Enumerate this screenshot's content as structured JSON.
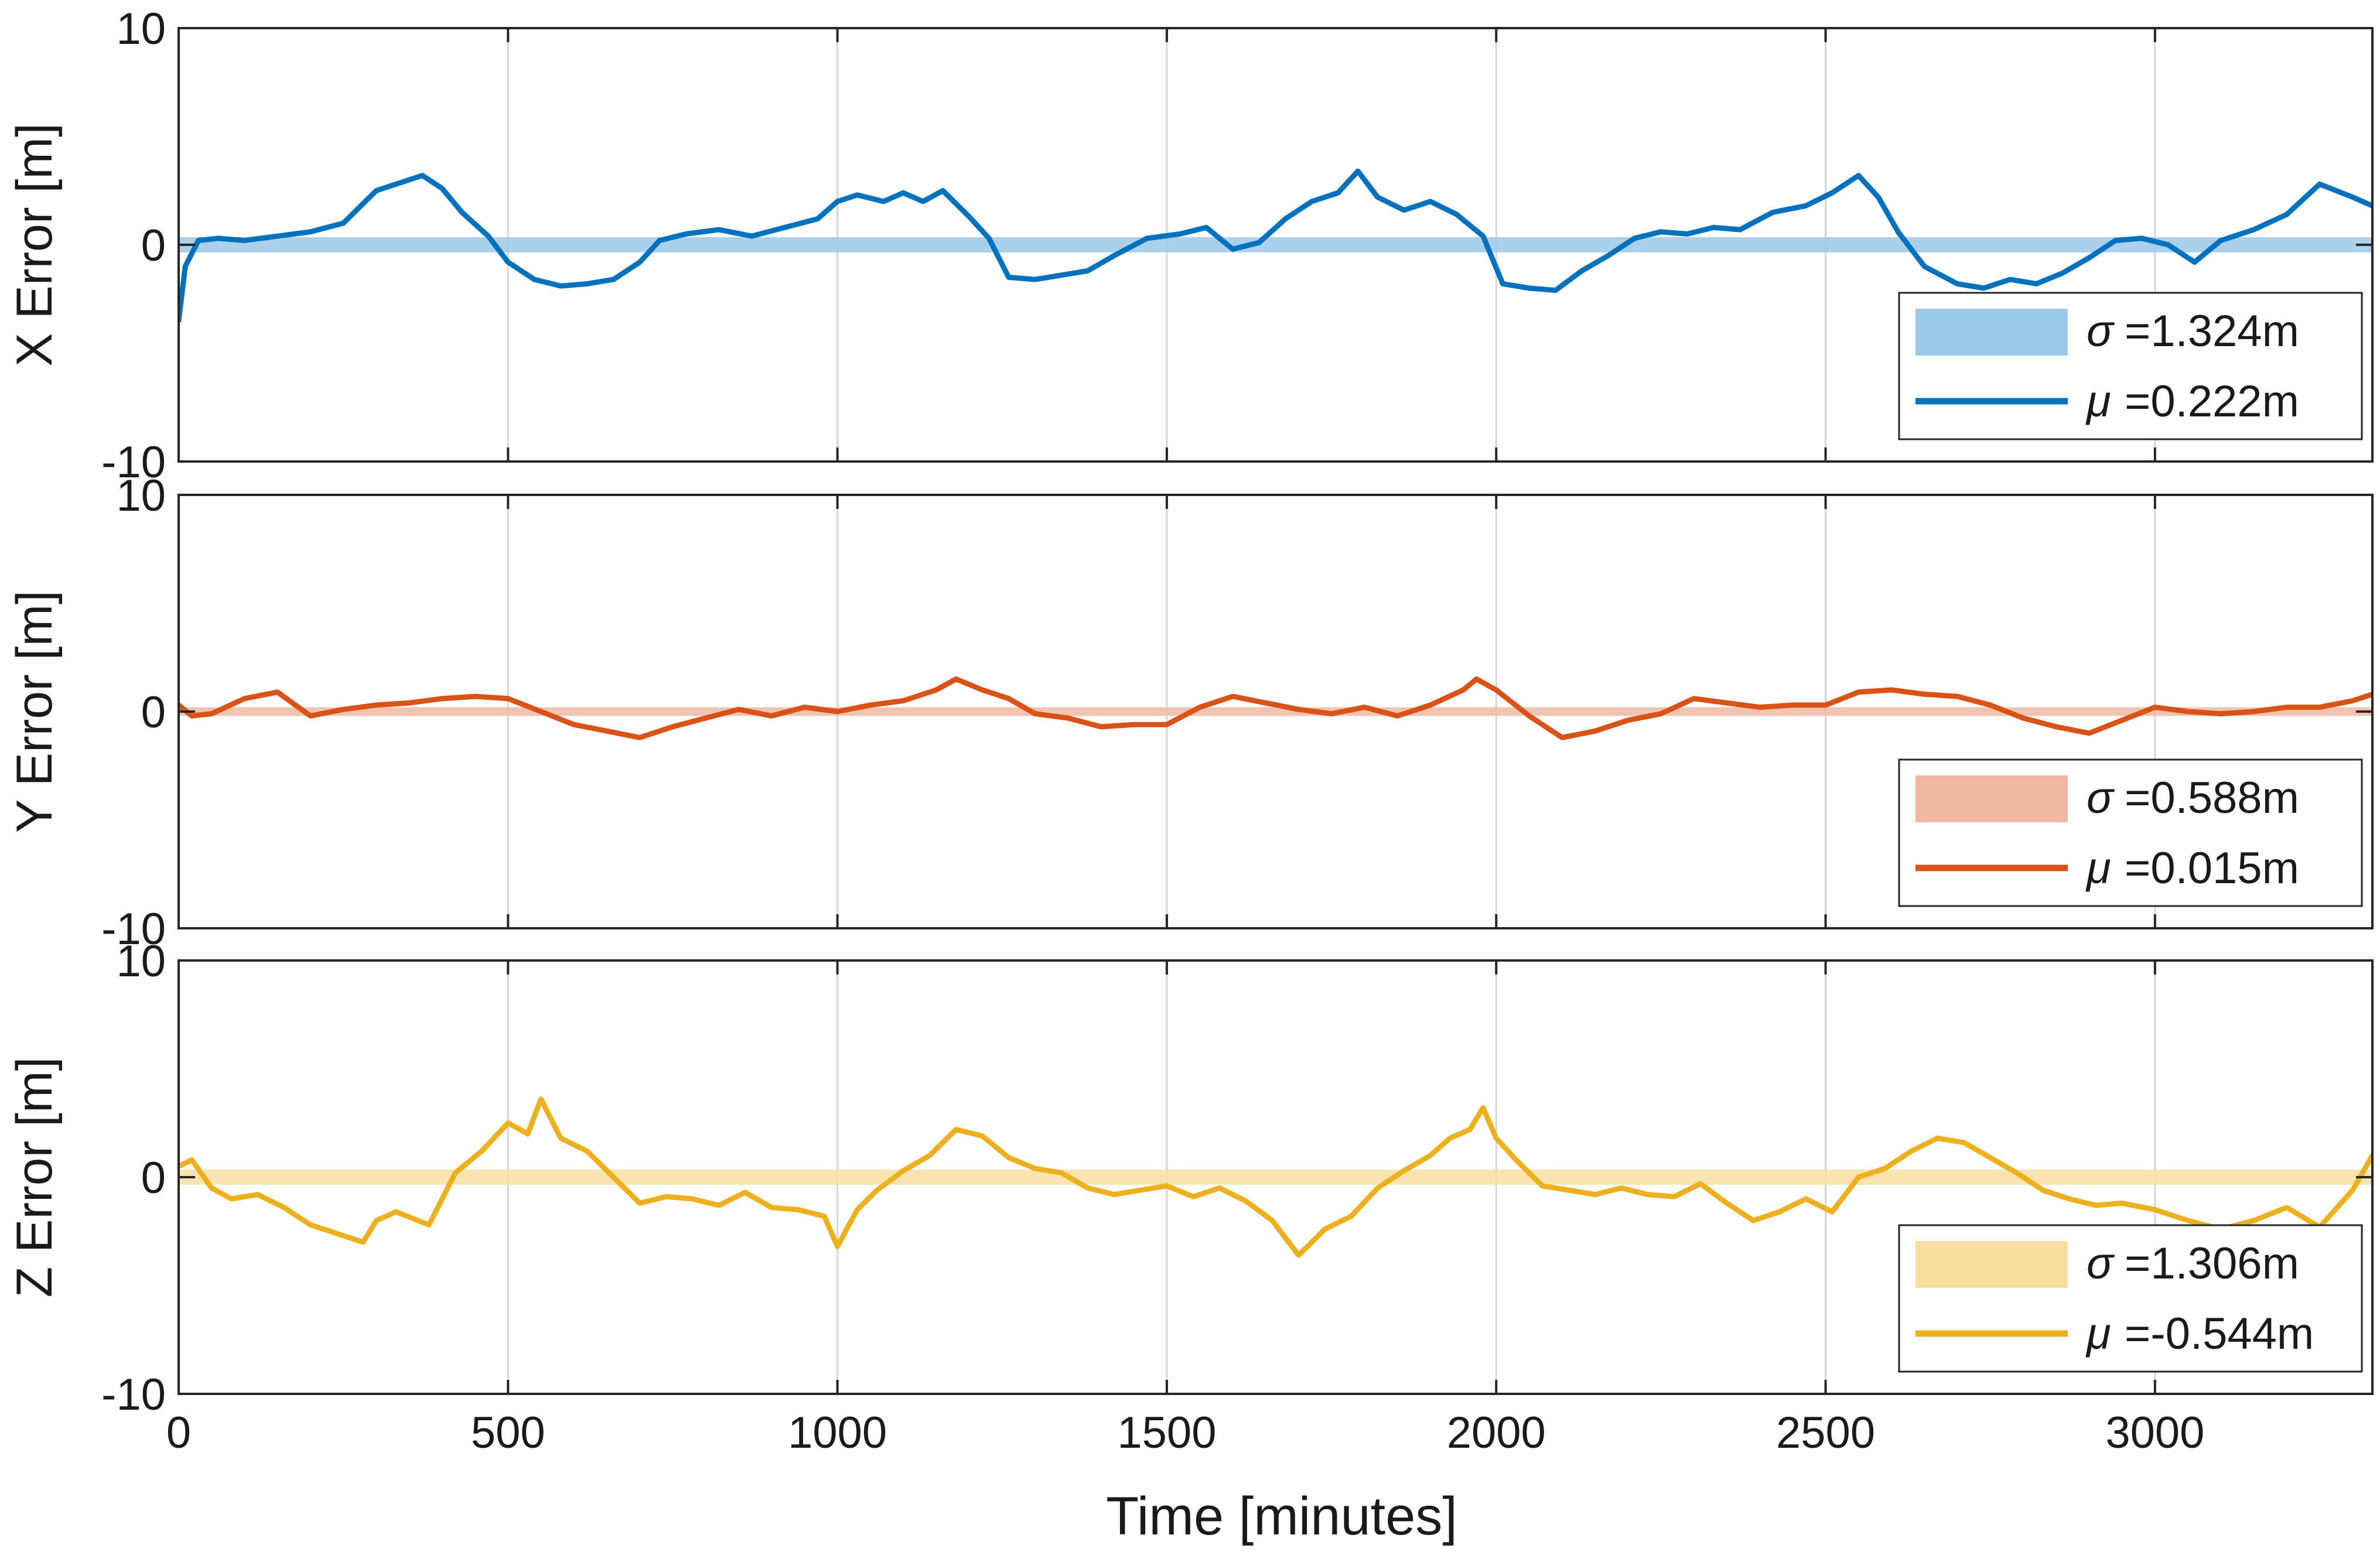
{
  "chart_data": {
    "type": "line",
    "xlabel": "Time [minutes]",
    "xlim": [
      0,
      3330
    ],
    "xticks": [
      0,
      500,
      1000,
      1500,
      2000,
      2500,
      3000
    ],
    "xtick_labels": [
      "0",
      "500",
      "1000",
      "1500",
      "2000",
      "2500",
      "3000"
    ],
    "ylim": [
      -10,
      10
    ],
    "yticks": [
      -10,
      0,
      10
    ],
    "ytick_labels": [
      "-10",
      "0",
      "10"
    ],
    "grid": "vertical",
    "legend_location": "bottom-right",
    "panels": [
      {
        "name": "x",
        "ylabel": "X Error [m]",
        "line_color": "#0072bd",
        "band_color": "#9cc8e8",
        "band_halfwidth": 0.35,
        "legend": [
          {
            "symbol": "σ",
            "text": "=1.324m",
            "kind": "band"
          },
          {
            "symbol": "μ",
            "text": "=0.222m",
            "kind": "line"
          }
        ],
        "series": {
          "x": [
            0,
            10,
            30,
            60,
            100,
            150,
            200,
            250,
            300,
            350,
            370,
            400,
            430,
            470,
            500,
            540,
            580,
            620,
            660,
            700,
            730,
            770,
            820,
            870,
            920,
            970,
            1000,
            1030,
            1070,
            1100,
            1130,
            1160,
            1200,
            1230,
            1260,
            1300,
            1340,
            1380,
            1420,
            1470,
            1520,
            1560,
            1600,
            1640,
            1680,
            1720,
            1760,
            1790,
            1820,
            1860,
            1900,
            1940,
            1980,
            2010,
            2050,
            2090,
            2130,
            2170,
            2210,
            2250,
            2290,
            2330,
            2370,
            2420,
            2470,
            2510,
            2550,
            2580,
            2610,
            2650,
            2700,
            2740,
            2780,
            2820,
            2860,
            2900,
            2940,
            2980,
            3020,
            3060,
            3100,
            3150,
            3200,
            3250,
            3300,
            3330
          ],
          "y": [
            -3.5,
            -1.0,
            0.2,
            0.3,
            0.2,
            0.4,
            0.6,
            1.0,
            2.5,
            3.0,
            3.2,
            2.6,
            1.5,
            0.4,
            -0.8,
            -1.6,
            -1.9,
            -1.8,
            -1.6,
            -0.8,
            0.2,
            0.5,
            0.7,
            0.4,
            0.8,
            1.2,
            2.0,
            2.3,
            2.0,
            2.4,
            2.0,
            2.5,
            1.3,
            0.3,
            -1.5,
            -1.6,
            -1.4,
            -1.2,
            -0.5,
            0.3,
            0.5,
            0.8,
            -0.2,
            0.1,
            1.2,
            2.0,
            2.4,
            3.4,
            2.2,
            1.6,
            2.0,
            1.4,
            0.4,
            -1.8,
            -2.0,
            -2.1,
            -1.2,
            -0.5,
            0.3,
            0.6,
            0.5,
            0.8,
            0.7,
            1.5,
            1.8,
            2.4,
            3.2,
            2.2,
            0.6,
            -1.0,
            -1.8,
            -2.0,
            -1.6,
            -1.8,
            -1.3,
            -0.6,
            0.2,
            0.3,
            0.0,
            -0.8,
            0.2,
            0.7,
            1.4,
            2.8,
            2.2,
            1.8
          ]
        }
      },
      {
        "name": "y",
        "ylabel": "Y Error [m]",
        "line_color": "#d95319",
        "band_color": "#f0b8a2",
        "band_halfwidth": 0.2,
        "legend": [
          {
            "symbol": "σ",
            "text": "=0.588m",
            "kind": "band"
          },
          {
            "symbol": "μ",
            "text": "=0.015m",
            "kind": "line"
          }
        ],
        "series": {
          "x": [
            0,
            20,
            50,
            100,
            150,
            200,
            250,
            300,
            350,
            400,
            450,
            500,
            550,
            600,
            650,
            700,
            750,
            800,
            850,
            900,
            950,
            1000,
            1050,
            1100,
            1150,
            1180,
            1220,
            1260,
            1300,
            1350,
            1400,
            1450,
            1500,
            1550,
            1600,
            1650,
            1700,
            1750,
            1800,
            1850,
            1900,
            1950,
            1970,
            2000,
            2050,
            2100,
            2150,
            2200,
            2250,
            2300,
            2350,
            2400,
            2450,
            2500,
            2550,
            2600,
            2650,
            2700,
            2750,
            2800,
            2850,
            2900,
            2950,
            3000,
            3050,
            3100,
            3150,
            3200,
            3250,
            3300,
            3330
          ],
          "y": [
            0.3,
            -0.2,
            -0.1,
            0.6,
            0.9,
            -0.2,
            0.1,
            0.3,
            0.4,
            0.6,
            0.7,
            0.6,
            0.0,
            -0.6,
            -0.9,
            -1.2,
            -0.7,
            -0.3,
            0.1,
            -0.2,
            0.2,
            0.0,
            0.3,
            0.5,
            1.0,
            1.5,
            1.0,
            0.6,
            -0.1,
            -0.3,
            -0.7,
            -0.6,
            -0.6,
            0.2,
            0.7,
            0.4,
            0.1,
            -0.1,
            0.2,
            -0.2,
            0.3,
            1.0,
            1.5,
            1.0,
            -0.2,
            -1.2,
            -0.9,
            -0.4,
            -0.1,
            0.6,
            0.4,
            0.2,
            0.3,
            0.3,
            0.9,
            1.0,
            0.8,
            0.7,
            0.3,
            -0.3,
            -0.7,
            -1.0,
            -0.4,
            0.2,
            0.0,
            -0.1,
            0.0,
            0.2,
            0.2,
            0.5,
            0.8
          ]
        }
      },
      {
        "name": "z",
        "ylabel": "Z Error [m]",
        "line_color": "#edb120",
        "band_color": "#f8dfa1",
        "band_halfwidth": 0.35,
        "legend": [
          {
            "symbol": "σ",
            "text": "=1.306m",
            "kind": "band"
          },
          {
            "symbol": "μ",
            "text": "=-0.544m",
            "kind": "line"
          }
        ],
        "series": {
          "x": [
            0,
            20,
            50,
            80,
            120,
            160,
            200,
            240,
            280,
            300,
            330,
            380,
            420,
            460,
            500,
            530,
            550,
            580,
            620,
            660,
            700,
            740,
            780,
            820,
            860,
            900,
            940,
            980,
            1000,
            1030,
            1060,
            1100,
            1140,
            1180,
            1220,
            1260,
            1300,
            1340,
            1380,
            1420,
            1460,
            1500,
            1540,
            1580,
            1620,
            1660,
            1700,
            1740,
            1780,
            1820,
            1860,
            1900,
            1930,
            1960,
            1980,
            2000,
            2030,
            2070,
            2110,
            2150,
            2190,
            2230,
            2270,
            2310,
            2350,
            2390,
            2430,
            2470,
            2510,
            2550,
            2590,
            2630,
            2670,
            2710,
            2750,
            2790,
            2830,
            2870,
            2910,
            2950,
            3000,
            3050,
            3100,
            3150,
            3200,
            3250,
            3300,
            3330
          ],
          "y": [
            0.5,
            0.8,
            -0.5,
            -1.0,
            -0.8,
            -1.4,
            -2.2,
            -2.6,
            -3.0,
            -2.0,
            -1.6,
            -2.2,
            0.2,
            1.2,
            2.5,
            2.0,
            3.6,
            1.8,
            1.2,
            0.0,
            -1.2,
            -0.9,
            -1.0,
            -1.3,
            -0.7,
            -1.4,
            -1.5,
            -1.8,
            -3.2,
            -1.5,
            -0.6,
            0.3,
            1.0,
            2.2,
            1.9,
            0.9,
            0.4,
            0.2,
            -0.5,
            -0.8,
            -0.6,
            -0.4,
            -0.9,
            -0.5,
            -1.1,
            -2.0,
            -3.6,
            -2.4,
            -1.8,
            -0.5,
            0.3,
            1.0,
            1.8,
            2.2,
            3.2,
            1.8,
            0.8,
            -0.4,
            -0.6,
            -0.8,
            -0.5,
            -0.8,
            -0.9,
            -0.3,
            -1.2,
            -2.0,
            -1.6,
            -1.0,
            -1.6,
            0.0,
            0.4,
            1.2,
            1.8,
            1.6,
            0.9,
            0.2,
            -0.6,
            -1.0,
            -1.3,
            -1.2,
            -1.5,
            -2.0,
            -2.4,
            -2.0,
            -1.4,
            -2.3,
            -0.6,
            1.0
          ]
        }
      }
    ]
  }
}
